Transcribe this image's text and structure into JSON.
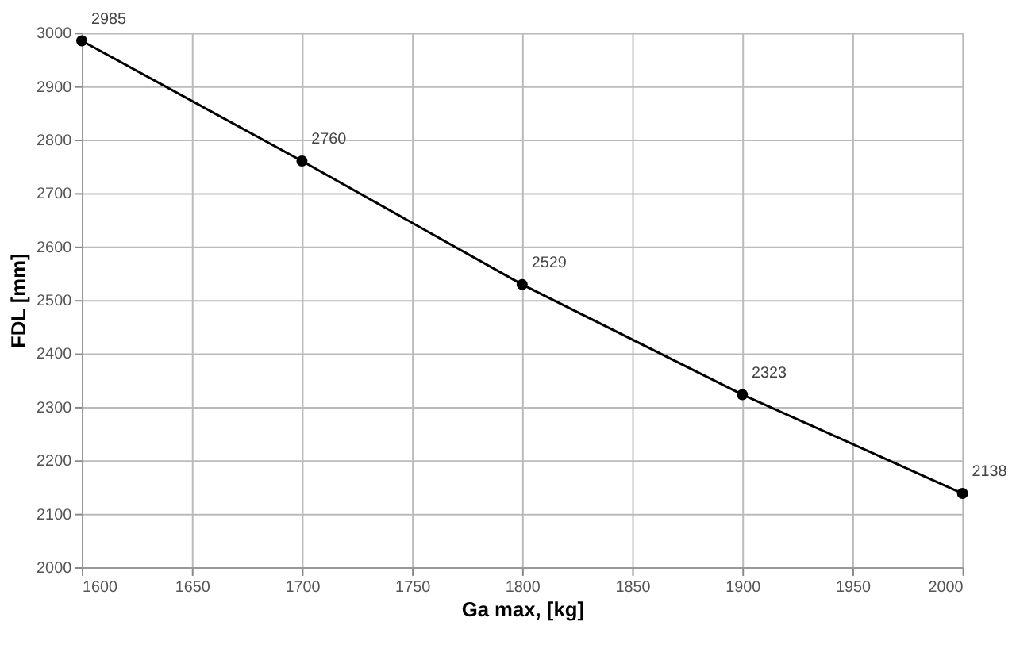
{
  "chart_data": {
    "type": "line",
    "xlabel": "Ga max, [kg]",
    "ylabel": "FDL [mm]",
    "x": [
      1600,
      1700,
      1800,
      1900,
      2000
    ],
    "series": [
      {
        "color": "#000000",
        "values": [
          2985,
          2760,
          2529,
          2323,
          2138
        ]
      }
    ],
    "xlim": [
      1600,
      2000
    ],
    "xticks": [
      1600,
      1650,
      1700,
      1750,
      1800,
      1850,
      1900,
      1950,
      2000
    ],
    "ylim": [
      2000,
      3000
    ],
    "yticks": [
      2000,
      2100,
      2200,
      2300,
      2400,
      2500,
      2600,
      2700,
      2800,
      2900,
      3000
    ],
    "grid": true,
    "marker": "circle",
    "line_style": "solid",
    "data_labels": true
  }
}
